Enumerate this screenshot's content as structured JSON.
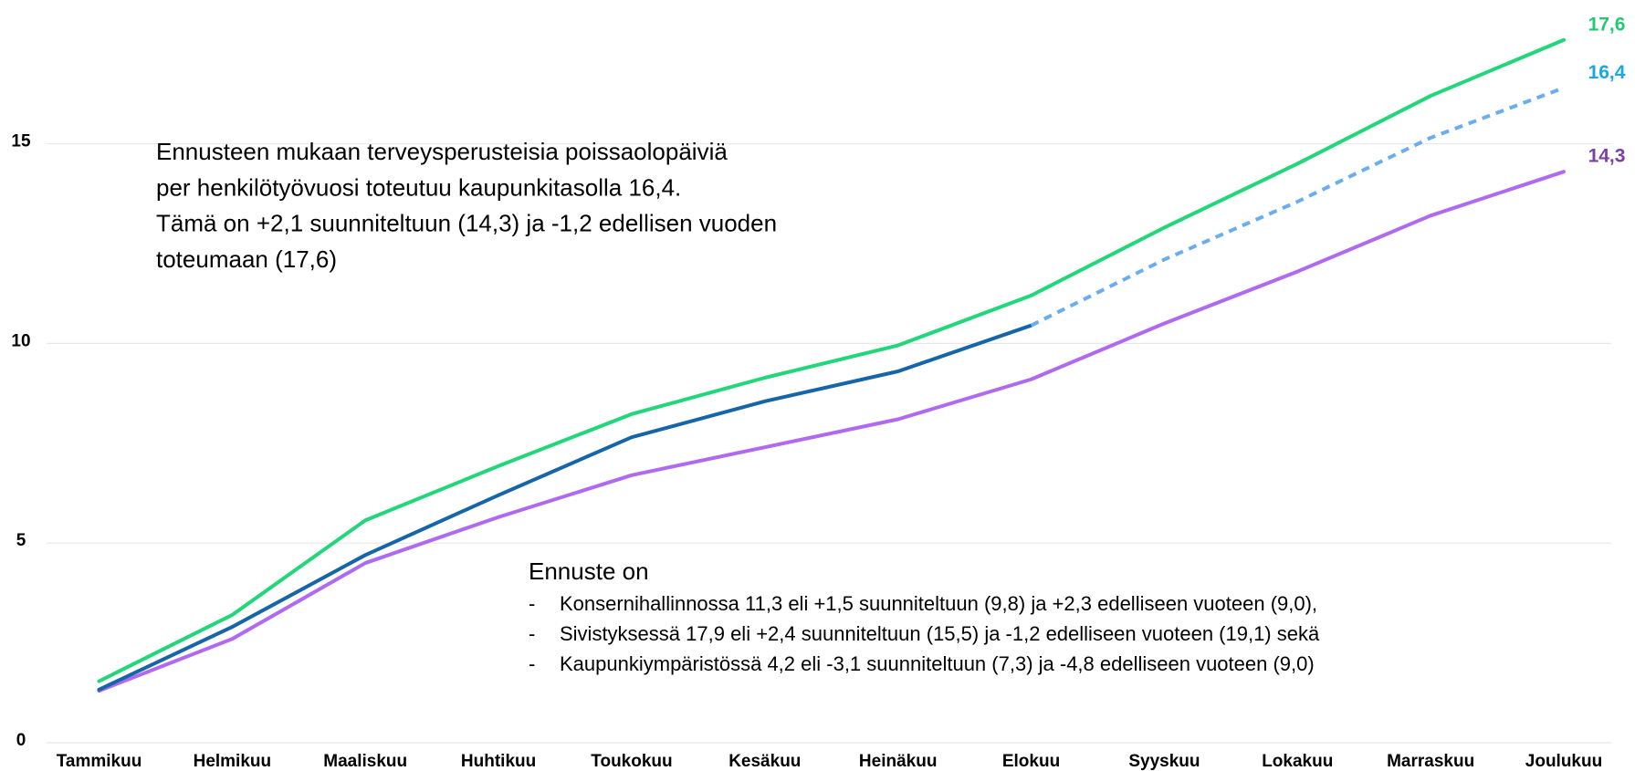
{
  "chart_data": {
    "type": "line",
    "categories": [
      "Tammikuu",
      "Helmikuu",
      "Maaliskuu",
      "Huhtikuu",
      "Toukokuu",
      "Kesäkuu",
      "Heinäkuu",
      "Elokuu",
      "Syyskuu",
      "Lokakuu",
      "Marraskuu",
      "Joulukuu"
    ],
    "series": [
      {
        "color": "#22d67a",
        "values": [
          1.54,
          3.2,
          5.57,
          6.93,
          8.23,
          9.14,
          9.95,
          11.2,
          12.9,
          14.5,
          16.2,
          17.6
        ],
        "value_labels": [
          null,
          null,
          null,
          null,
          null,
          null,
          null,
          null,
          null,
          null,
          null,
          "17,6"
        ],
        "label_color": "#22c970"
      },
      {
        "color": "#b06af0",
        "values": [
          1.3,
          2.6,
          4.5,
          5.65,
          6.7,
          7.4,
          8.1,
          9.1,
          10.5,
          11.8,
          13.2,
          14.3
        ],
        "value_labels": [
          null,
          null,
          null,
          null,
          null,
          null,
          null,
          null,
          null,
          null,
          null,
          "14,3"
        ],
        "label_color": "#7b3fa8"
      },
      {
        "color": "#1565a8",
        "values": [
          1.33,
          2.9,
          4.7,
          6.2,
          7.65,
          8.55,
          9.3,
          10.45,
          null,
          null,
          null,
          null
        ]
      },
      {
        "color": "#6aaef0",
        "dashed": true,
        "values": [
          null,
          null,
          null,
          null,
          null,
          null,
          null,
          10.45,
          12.1,
          13.55,
          15.15,
          16.4
        ],
        "value_labels": [
          null,
          null,
          null,
          null,
          null,
          null,
          null,
          null,
          null,
          null,
          null,
          "16,4"
        ],
        "label_color": "#1aa8e0"
      }
    ],
    "ylim": [
      0,
      18.6
    ],
    "yticks": [
      0,
      5,
      10,
      15
    ],
    "grid": true,
    "annotations": [
      {
        "lines": [
          "Ennusteen mukaan terveysperusteisia poissaolopäiviä",
          "per henkilötyövuosi toteutuu kaupunkitasolla 16,4.",
          "Tämä on +2,1 suunniteltuun (14,3) ja -1,2 edellisen vuoden",
          "toteumaan (17,6)"
        ]
      },
      {
        "heading": "Ennuste on",
        "bullet": "-",
        "items": [
          "Konsernihallinnossa 11,3 eli +1,5 suunniteltuun (9,8) ja +2,3 edelliseen vuoteen (9,0),",
          "Sivistyksessä 17,9 eli +2,4 suunniteltuun (15,5) ja -1,2 edelliseen vuoteen (19,1) sekä",
          "Kaupunkiympäristössä 4,2 eli -3,1 suunniteltuun (7,3) ja -4,8 edelliseen vuoteen (9,0)"
        ]
      }
    ]
  }
}
